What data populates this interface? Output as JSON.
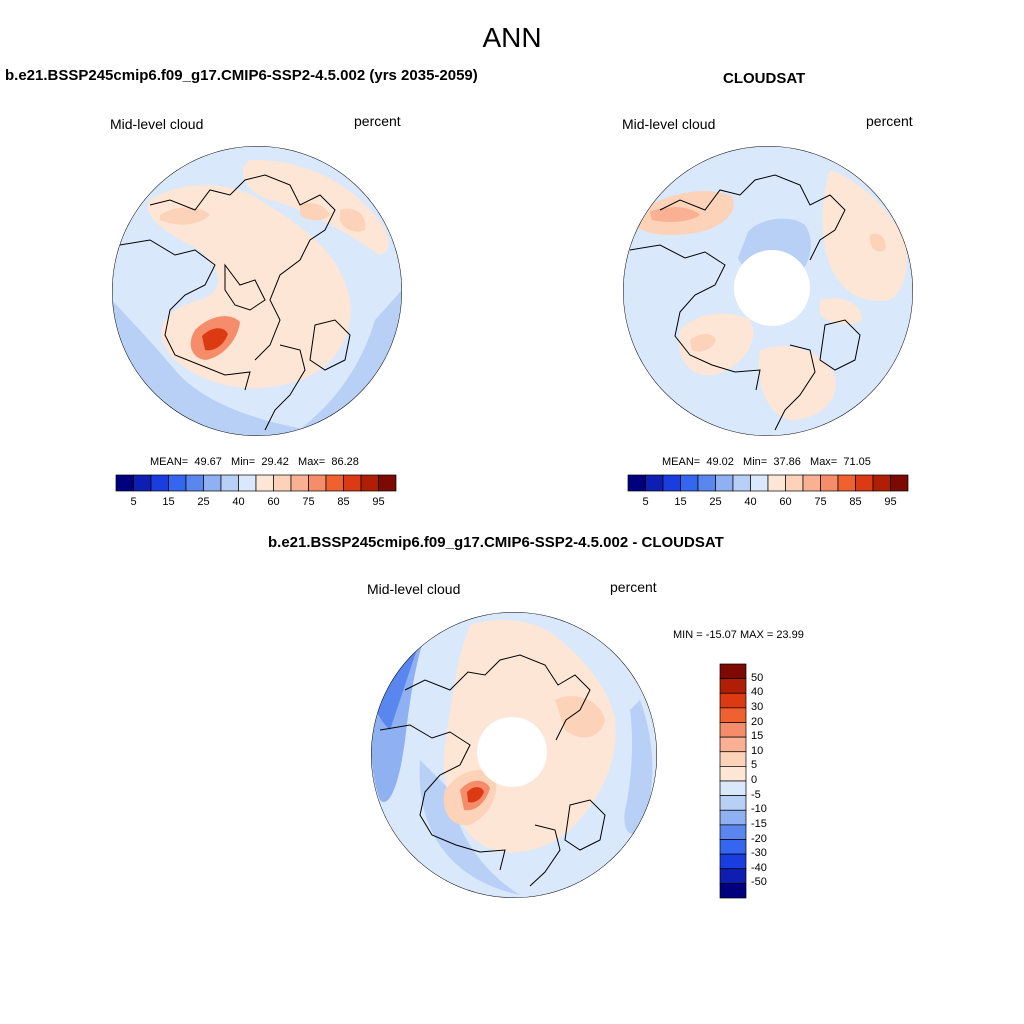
{
  "page": {
    "title": "ANN"
  },
  "panels": {
    "model": {
      "title": "b.e21.BSSP245cmip6.f09_g17.CMIP6-SSP2-4.5.002 (yrs 2035-2059)",
      "variable": "Mid-level cloud",
      "units": "percent",
      "stats": {
        "mean_label": "MEAN=",
        "mean": "49.67",
        "min_label": "Min=",
        "min": "29.42",
        "max_label": "Max=",
        "max": "86.28"
      }
    },
    "obs": {
      "title": "CLOUDSAT",
      "variable": "Mid-level cloud",
      "units": "percent",
      "stats": {
        "mean_label": "MEAN=",
        "mean": "49.02",
        "min_label": "Min=",
        "min": "37.86",
        "max_label": "Max=",
        "max": "71.05"
      }
    },
    "diff": {
      "title": "b.e21.BSSP245cmip6.f09_g17.CMIP6-SSP2-4.5.002 - CLOUDSAT",
      "variable": "Mid-level cloud",
      "units": "percent",
      "range_text": "MIN = -15.07 MAX =  23.99"
    }
  },
  "colorbar_abs": {
    "ticks": [
      "5",
      "15",
      "25",
      "40",
      "60",
      "75",
      "85",
      "95"
    ],
    "colors": [
      "#00007f",
      "#0d1eb0",
      "#1a3de0",
      "#3566f0",
      "#5a86ef",
      "#8fb0f1",
      "#b8cff6",
      "#dae8fb",
      "#fde6d5",
      "#fcd2b8",
      "#f9b093",
      "#f58d6a",
      "#ef6131",
      "#dc3a12",
      "#b11e06",
      "#7c0a02"
    ]
  },
  "colorbar_diff": {
    "levels": [
      "50",
      "40",
      "30",
      "20",
      "15",
      "10",
      "5",
      "0",
      "-5",
      "-10",
      "-15",
      "-20",
      "-30",
      "-40",
      "-50"
    ],
    "colors": [
      "#7c0a02",
      "#b11e06",
      "#dc3a12",
      "#ef6131",
      "#f58d6a",
      "#f9b093",
      "#fcd2b8",
      "#fde6d5",
      "#dae8fb",
      "#b8cff6",
      "#8fb0f1",
      "#5a86ef",
      "#3566f0",
      "#1a3de0",
      "#0d1eb0",
      "#00007f"
    ]
  }
}
